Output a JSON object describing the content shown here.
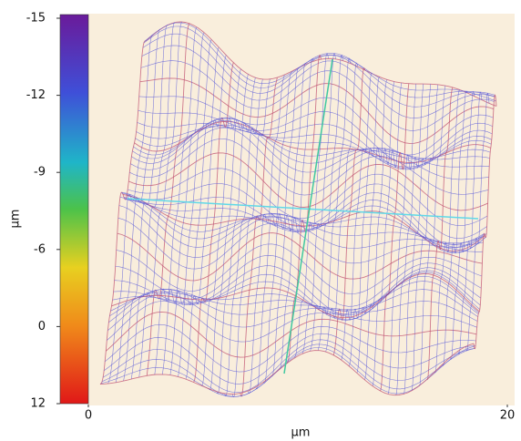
{
  "chart_data": {
    "type": "surface",
    "colorbar_ticks": [
      -15,
      -12,
      -9,
      -6,
      0,
      12
    ],
    "y_label": "μm",
    "x_label": "μm",
    "xlim": [
      0,
      20
    ],
    "xticks": [
      0,
      20
    ]
  }
}
